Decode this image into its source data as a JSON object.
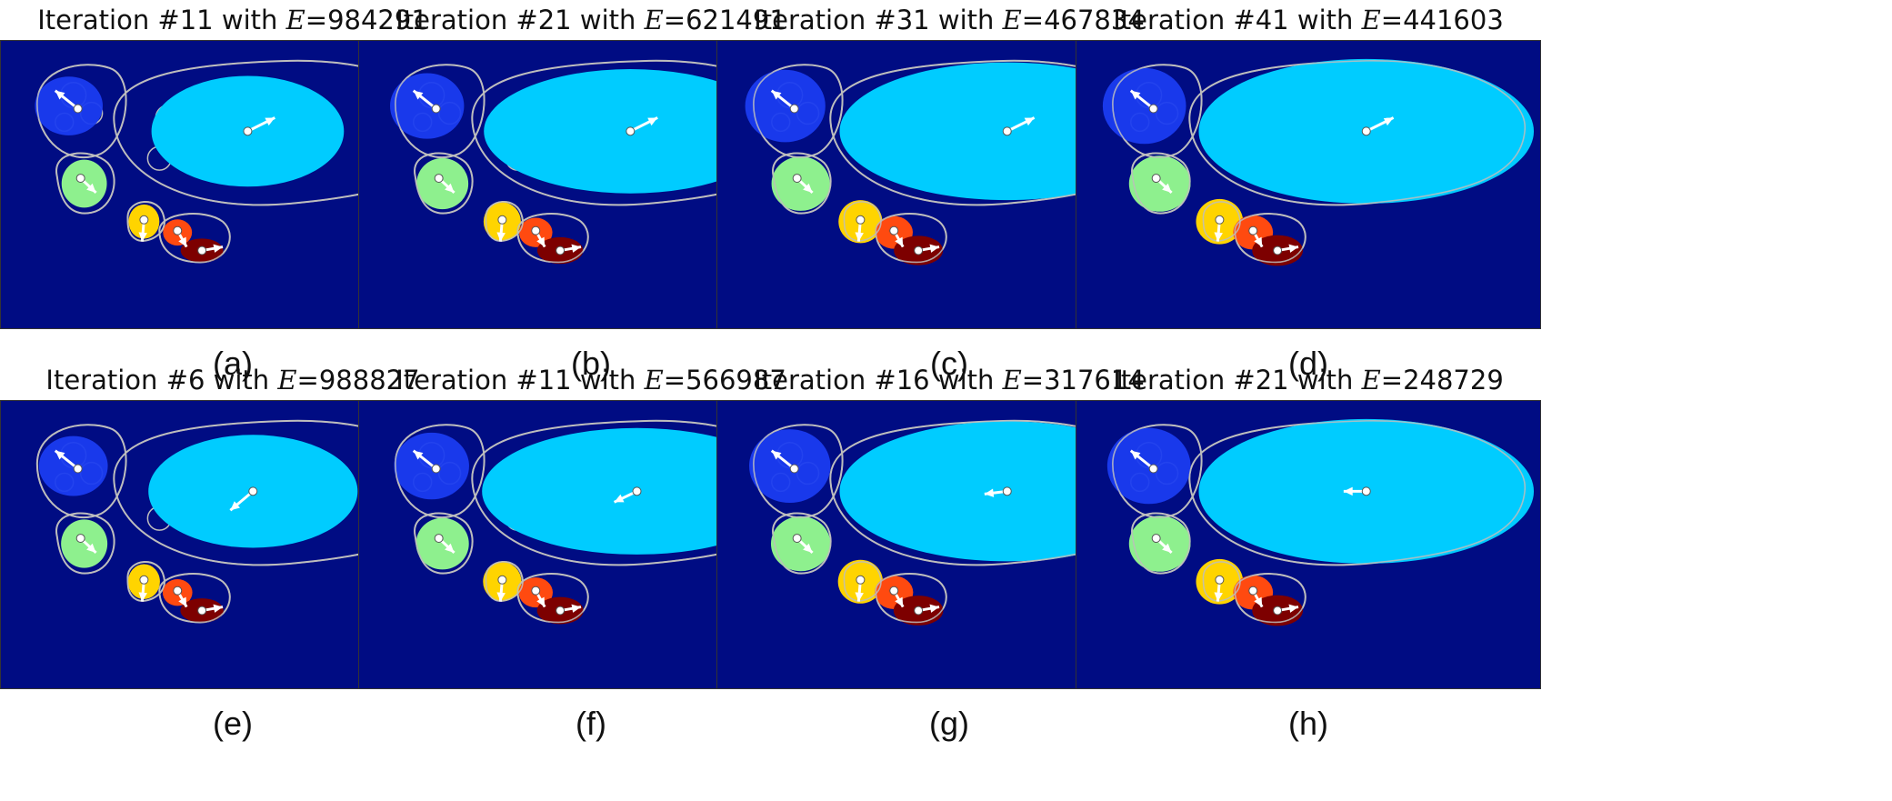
{
  "figure": {
    "panels": [
      {
        "label": "(a)",
        "iteration": "Iteration #11 with ",
        "energy_symbol": "E",
        "energy_value": "=984291",
        "stage": 0.25
      },
      {
        "label": "(b)",
        "iteration": "Iteration #21 with ",
        "energy_symbol": "E",
        "energy_value": "=621491",
        "stage": 0.55
      },
      {
        "label": "(c)",
        "iteration": "Iteration #31 with ",
        "energy_symbol": "E",
        "energy_value": "=467834",
        "stage": 0.85
      },
      {
        "label": "(d)",
        "iteration": "Iteration #41 with ",
        "energy_symbol": "E",
        "energy_value": "=441603",
        "stage": 1.0
      },
      {
        "label": "(e)",
        "iteration": "Iteration #6 with ",
        "energy_symbol": "E",
        "energy_value": "=988827",
        "stage": 0.3
      },
      {
        "label": "(f)",
        "iteration": "Iteration #11 with ",
        "energy_symbol": "E",
        "energy_value": "=566987",
        "stage": 0.6
      },
      {
        "label": "(g)",
        "iteration": "Iteration #16 with ",
        "energy_symbol": "E",
        "energy_value": "=317614",
        "stage": 0.9
      },
      {
        "label": "(h)",
        "iteration": "Iteration #21 with ",
        "energy_symbol": "E",
        "energy_value": "=248729",
        "stage": 1.0
      }
    ],
    "colors": {
      "background": "#000c83",
      "outline": "#bdbdbd",
      "blue": "#1a3cf0",
      "cyan": "#00ccff",
      "green": "#8ef08e",
      "yellow": "#ffd400",
      "orange": "#ff4a10",
      "darkred": "#7d0000",
      "arrow": "#ffffff"
    }
  }
}
